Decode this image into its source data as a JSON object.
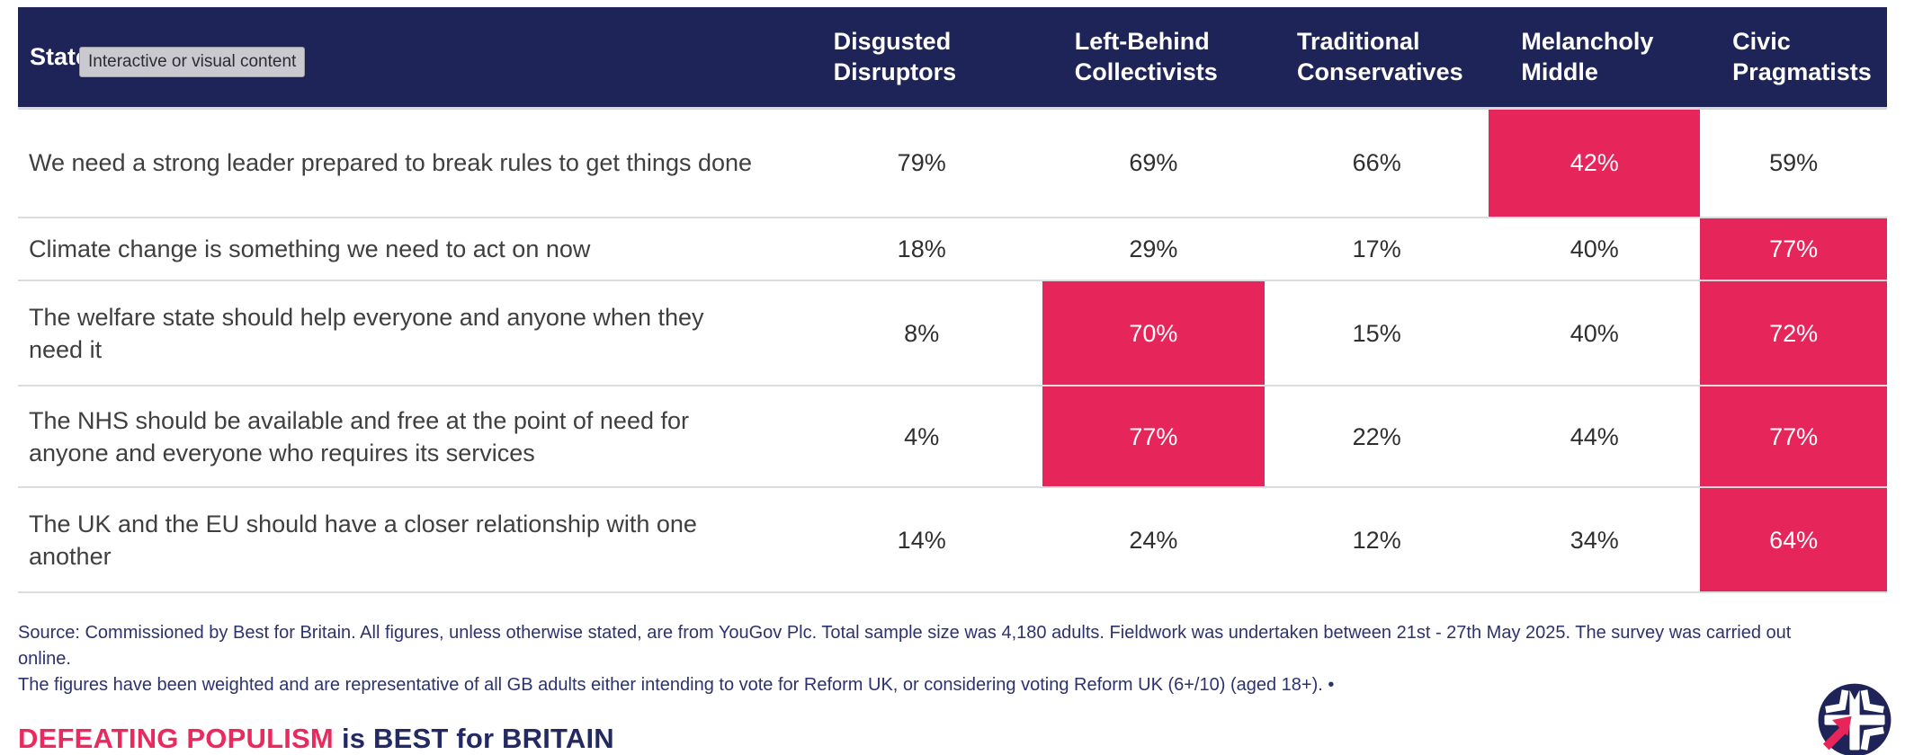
{
  "overlay": {
    "badge_label": "Interactive or visual content"
  },
  "table": {
    "statement_header": "Statement",
    "columns": [
      "Disgusted Disruptors",
      "Left-Behind Collectivists",
      "Traditional Conservatives",
      "Melancholy Middle",
      "Civic Pragmatists"
    ],
    "rows": [
      {
        "statement": "We need a strong leader prepared to break rules to get things done",
        "values": [
          {
            "v": "79%",
            "hl": false
          },
          {
            "v": "69%",
            "hl": false
          },
          {
            "v": "66%",
            "hl": false
          },
          {
            "v": "42%",
            "hl": true
          },
          {
            "v": "59%",
            "hl": false
          }
        ]
      },
      {
        "statement": "Climate change is something we need to act on now",
        "values": [
          {
            "v": "18%",
            "hl": false
          },
          {
            "v": "29%",
            "hl": false
          },
          {
            "v": "17%",
            "hl": false
          },
          {
            "v": "40%",
            "hl": false
          },
          {
            "v": "77%",
            "hl": true
          }
        ]
      },
      {
        "statement": "The welfare state should help everyone and anyone when they need it",
        "values": [
          {
            "v": "8%",
            "hl": false
          },
          {
            "v": "70%",
            "hl": true
          },
          {
            "v": "15%",
            "hl": false
          },
          {
            "v": "40%",
            "hl": false
          },
          {
            "v": "72%",
            "hl": true
          }
        ]
      },
      {
        "statement": "The NHS should be available and free at the point of need for anyone and everyone who requires its services",
        "values": [
          {
            "v": "4%",
            "hl": false
          },
          {
            "v": "77%",
            "hl": true
          },
          {
            "v": "22%",
            "hl": false
          },
          {
            "v": "44%",
            "hl": false
          },
          {
            "v": "77%",
            "hl": true
          }
        ]
      },
      {
        "statement": "The UK and the EU should have a closer relationship with one another",
        "values": [
          {
            "v": "14%",
            "hl": false
          },
          {
            "v": "24%",
            "hl": false
          },
          {
            "v": "12%",
            "hl": false
          },
          {
            "v": "34%",
            "hl": false
          },
          {
            "v": "64%",
            "hl": true
          }
        ]
      }
    ]
  },
  "footer": {
    "line1": "Source: Commissioned by Best for Britain. All figures, unless otherwise stated, are from YouGov Plc. Total sample size was 4,180 adults. Fieldwork was undertaken between 21st - 27th May 2025. The survey was carried out online.",
    "line2": "The figures have been weighted and are representative of all GB adults either intending to vote for Reform UK, or considering voting Reform UK (6+/10) (aged 18+). •"
  },
  "slogan": {
    "pink_text": "DEFEATING POPULISM",
    "navy_text": "is BEST for BRITAIN"
  },
  "logo": {
    "name": "best-for-britain-roundel"
  },
  "colors": {
    "navy": "#1f2458",
    "pink": "#e6255b",
    "separator": "#dcdcde",
    "footer_text": "#2c326e"
  },
  "chart_data": {
    "type": "table",
    "title": "",
    "unit": "percent agreeing with statement",
    "categories": [
      "We need a strong leader prepared to break rules to get things done",
      "Climate change is something we need to act on now",
      "The welfare state should help everyone and anyone when they need it",
      "The NHS should be available and free at the point of need for anyone and everyone who requires its services",
      "The UK and the EU should have a closer relationship with one another"
    ],
    "series": [
      {
        "name": "Disgusted Disruptors",
        "values": [
          79,
          18,
          8,
          4,
          14
        ],
        "highlighted_rows": []
      },
      {
        "name": "Left-Behind Collectivists",
        "values": [
          69,
          29,
          70,
          77,
          24
        ],
        "highlighted_rows": [
          2,
          3
        ]
      },
      {
        "name": "Traditional Conservatives",
        "values": [
          66,
          17,
          15,
          22,
          12
        ],
        "highlighted_rows": []
      },
      {
        "name": "Melancholy Middle",
        "values": [
          42,
          40,
          40,
          44,
          34
        ],
        "highlighted_rows": [
          0
        ]
      },
      {
        "name": "Civic Pragmatists",
        "values": [
          59,
          77,
          72,
          77,
          64
        ],
        "highlighted_rows": [
          1,
          2,
          3,
          4
        ]
      }
    ],
    "note": "Highlighted (pink) cells mark emphasized values per segment"
  }
}
